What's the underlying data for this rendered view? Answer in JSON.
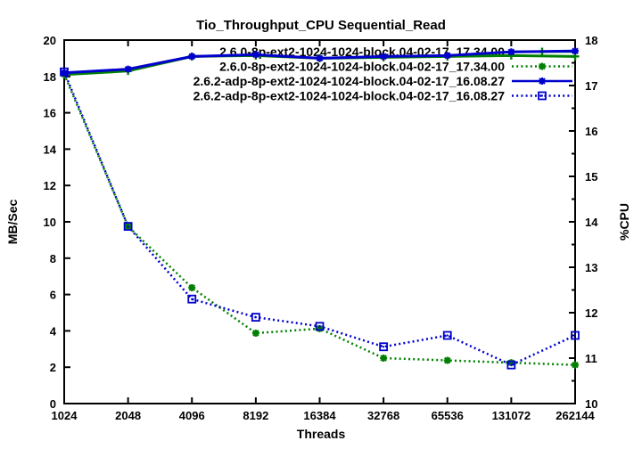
{
  "chart_data": {
    "type": "line",
    "title": "Tio_Throughput_CPU Sequential_Read",
    "xlabel": "Threads",
    "ylabel_left": "MB/Sec",
    "ylabel_right": "%CPU",
    "x_scale": "log2",
    "categories": [
      1024,
      2048,
      4096,
      8192,
      16384,
      32768,
      65536,
      131072,
      262144
    ],
    "left_axis": {
      "min": 0,
      "max": 20,
      "tick_step": 2
    },
    "right_axis": {
      "min": 10,
      "max": 18,
      "tick_step": 1,
      "minor_step": 0.5
    },
    "grid": false,
    "legend_position": "top-right-inside",
    "colors": {
      "green": "#008000",
      "blue": "#0000CD",
      "axis": "#000000",
      "background": "#ffffff"
    },
    "series": [
      {
        "name": "2.6.0-8p-ext2-1024-1024-block.04-02-17_17.34.00",
        "axis": "left",
        "unit": "MB/Sec",
        "color": "#008000",
        "line": "solid",
        "marker": "plus",
        "values": [
          18.1,
          18.3,
          19.1,
          19.15,
          19.0,
          19.05,
          19.1,
          19.15,
          19.1
        ]
      },
      {
        "name": "2.6.0-8p-ext2-1024-1024-block.04-02-17_17.34.00",
        "axis": "right",
        "unit": "%CPU",
        "color": "#008000",
        "line": "dotted",
        "marker": "asterisk",
        "values": [
          17.25,
          13.9,
          12.55,
          11.55,
          11.65,
          11.0,
          10.95,
          10.9,
          10.85
        ]
      },
      {
        "name": "2.6.2-adp-8p-ext2-1024-1024-block.04-02-17_16.08.27",
        "axis": "left",
        "unit": "MB/Sec",
        "color": "#0000CD",
        "line": "solid",
        "marker": "asterisk",
        "values": [
          18.2,
          18.4,
          19.1,
          19.2,
          19.0,
          19.1,
          19.15,
          19.35,
          19.4
        ]
      },
      {
        "name": "2.6.2-adp-8p-ext2-1024-1024-block.04-02-17_16.08.27",
        "axis": "right",
        "unit": "%CPU",
        "color": "#0000CD",
        "line": "dotted",
        "marker": "open-square",
        "values": [
          17.3,
          13.9,
          12.3,
          11.9,
          11.7,
          11.25,
          11.5,
          10.85,
          11.5
        ]
      }
    ]
  }
}
